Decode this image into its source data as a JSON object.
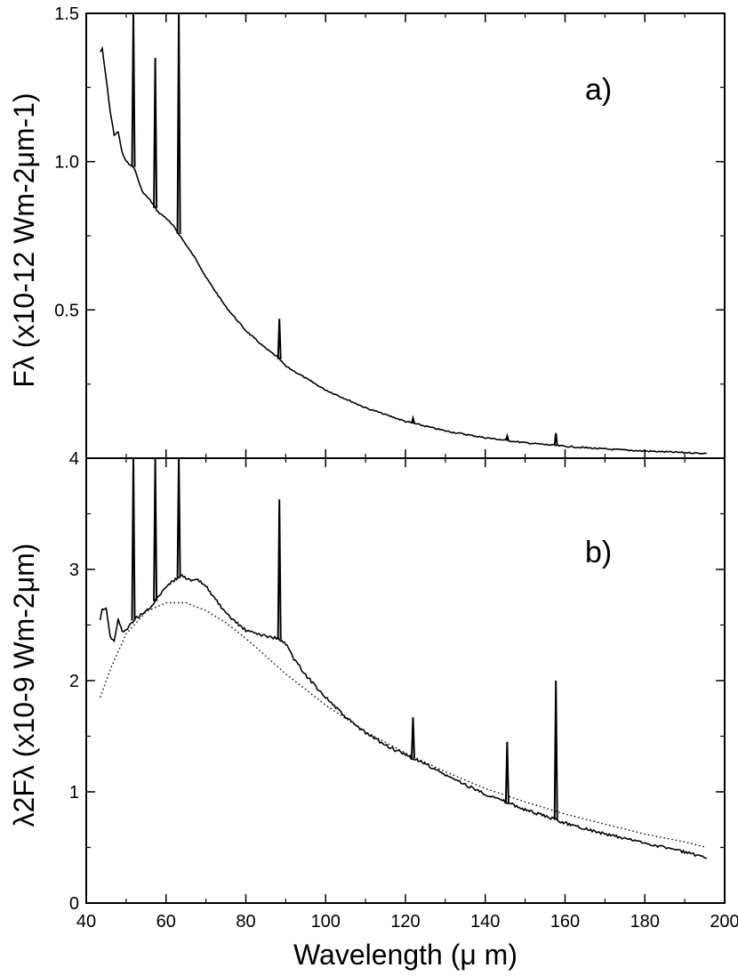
{
  "chart_data": [
    {
      "type": "line",
      "panel_label": "a)",
      "ylabel": "Fλ (x10-12 Wm-2μm-1)",
      "xlim": [
        40,
        200
      ],
      "ylim": [
        0,
        1.5
      ],
      "yticks": [
        0.5,
        1.0,
        1.5
      ],
      "ytick_labels": [
        "0.5",
        "1.0",
        "1.5"
      ],
      "series": [
        {
          "style": "solid",
          "x": [
            43.5,
            44,
            45,
            46,
            47,
            48,
            49,
            50,
            51,
            52,
            54,
            56,
            58,
            60,
            62,
            64,
            66,
            68,
            70,
            72,
            75,
            80,
            85,
            88,
            90,
            95,
            100,
            110,
            120,
            130,
            140,
            150,
            160,
            170,
            180,
            190,
            195.5
          ],
          "y": [
            1.37,
            1.38,
            1.28,
            1.17,
            1.09,
            1.1,
            1.03,
            1.0,
            0.99,
            0.98,
            0.9,
            0.87,
            0.83,
            0.81,
            0.78,
            0.74,
            0.7,
            0.66,
            0.61,
            0.57,
            0.51,
            0.43,
            0.37,
            0.34,
            0.31,
            0.27,
            0.23,
            0.17,
            0.124,
            0.092,
            0.069,
            0.052,
            0.04,
            0.031,
            0.024,
            0.019,
            0.016
          ]
        }
      ],
      "lines": [
        {
          "x": 51.8,
          "peak": 1.7
        },
        {
          "x": 57.3,
          "peak": 1.35
        },
        {
          "x": 63.2,
          "peak": 1.8
        },
        {
          "x": 88.4,
          "peak": 0.47
        },
        {
          "x": 121.9,
          "peak": 0.135
        },
        {
          "x": 145.5,
          "peak": 0.075
        },
        {
          "x": 157.7,
          "peak": 0.085
        }
      ]
    },
    {
      "type": "line",
      "panel_label": "b)",
      "ylabel": "λ2Fλ (x10-9 Wm-2μm)",
      "xlabel": "Wavelength (μ m)",
      "xlim": [
        40,
        200
      ],
      "ylim": [
        0,
        4
      ],
      "xticks": [
        40,
        60,
        80,
        100,
        120,
        140,
        160,
        180,
        200
      ],
      "xtick_labels": [
        "40",
        "60",
        "80",
        "100",
        "120",
        "140",
        "160",
        "180",
        "200"
      ],
      "yticks": [
        0,
        1,
        2,
        3,
        4
      ],
      "ytick_labels": [
        "0",
        "1",
        "2",
        "3",
        "4"
      ],
      "series": [
        {
          "style": "solid",
          "x": [
            43.5,
            44,
            45,
            46,
            47,
            48,
            49,
            50,
            51,
            52,
            54,
            56,
            58,
            60,
            62,
            64,
            66,
            68,
            70,
            72,
            75,
            80,
            85,
            88,
            90,
            92,
            95,
            100,
            105,
            110,
            115,
            120,
            125,
            130,
            140,
            150,
            160,
            170,
            180,
            190,
            195.5
          ],
          "y": [
            2.55,
            2.65,
            2.65,
            2.4,
            2.35,
            2.55,
            2.45,
            2.45,
            2.5,
            2.55,
            2.6,
            2.65,
            2.75,
            2.85,
            2.9,
            2.95,
            2.9,
            2.9,
            2.85,
            2.75,
            2.6,
            2.45,
            2.4,
            2.38,
            2.33,
            2.2,
            2.05,
            1.85,
            1.67,
            1.53,
            1.42,
            1.33,
            1.25,
            1.15,
            0.98,
            0.84,
            0.72,
            0.62,
            0.54,
            0.46,
            0.4
          ]
        },
        {
          "style": "dotted",
          "x": [
            43.5,
            46,
            50,
            55,
            60,
            65,
            70,
            75,
            80,
            90,
            100,
            110,
            120,
            130,
            140,
            150,
            160,
            170,
            180,
            190,
            195.5
          ],
          "y": [
            1.85,
            2.1,
            2.42,
            2.62,
            2.7,
            2.7,
            2.63,
            2.52,
            2.38,
            2.06,
            1.78,
            1.54,
            1.35,
            1.18,
            1.03,
            0.91,
            0.8,
            0.71,
            0.62,
            0.55,
            0.5
          ]
        }
      ],
      "lines": [
        {
          "x": 51.8,
          "peak": 4.0
        },
        {
          "x": 57.3,
          "peak": 4.0
        },
        {
          "x": 63.2,
          "peak": 4.0
        },
        {
          "x": 88.4,
          "peak": 3.63
        },
        {
          "x": 121.9,
          "peak": 1.67
        },
        {
          "x": 145.5,
          "peak": 1.45
        },
        {
          "x": 157.7,
          "peak": 2.0
        }
      ]
    }
  ]
}
